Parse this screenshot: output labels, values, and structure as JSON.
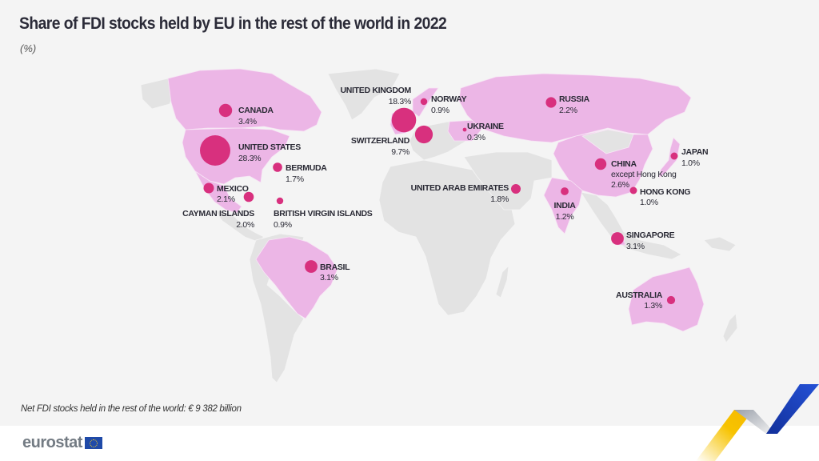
{
  "header": {
    "title": "Share of FDI stocks held by EU in the rest of the world in 2022",
    "unit": "(%)"
  },
  "colors": {
    "background": "#f4f4f4",
    "land": "#e3e3e3",
    "highlighted_land": "#ecb6e6",
    "bubble": "#d8307e",
    "text": "#2a2a35",
    "decor_yellow": "#f7c300",
    "decor_blue": "#1a3fb5"
  },
  "chart_data": {
    "type": "map",
    "title": "Share of FDI stocks held by EU in the rest of the world in 2022",
    "unit": "%",
    "encoding": "proportional bubbles on highlighted countries",
    "series": [
      {
        "name": "UNITED STATES",
        "value": 28.3
      },
      {
        "name": "UNITED KINGDOM",
        "value": 18.3
      },
      {
        "name": "SWITZERLAND",
        "value": 9.7
      },
      {
        "name": "CANADA",
        "value": 3.4
      },
      {
        "name": "BRASIL",
        "value": 3.1
      },
      {
        "name": "SINGAPORE",
        "value": 3.1
      },
      {
        "name": "CHINA",
        "sub": "except Hong Kong",
        "value": 2.6
      },
      {
        "name": "RUSSIA",
        "value": 2.2
      },
      {
        "name": "MEXICO",
        "value": 2.1
      },
      {
        "name": "CAYMAN ISLANDS",
        "value": 2.0
      },
      {
        "name": "UNITED ARAB EMIRATES",
        "value": 1.8
      },
      {
        "name": "BERMUDA",
        "value": 1.7
      },
      {
        "name": "AUSTRALIA",
        "value": 1.3
      },
      {
        "name": "INDIA",
        "value": 1.2
      },
      {
        "name": "JAPAN",
        "value": 1.0
      },
      {
        "name": "HONG KONG",
        "value": 1.0
      },
      {
        "name": "NORWAY",
        "value": 0.9
      },
      {
        "name": "BRITISH VIRGIN ISLANDS",
        "value": 0.9
      },
      {
        "name": "UKRAINE",
        "value": 0.3
      }
    ]
  },
  "labels": {
    "united_states": {
      "name": "UNITED STATES",
      "value": "28.3%"
    },
    "united_kingdom": {
      "name": "UNITED KINGDOM",
      "value": "18.3%"
    },
    "switzerland": {
      "name": "SWITZERLAND",
      "value": "9.7%"
    },
    "canada": {
      "name": "CANADA",
      "value": "3.4%"
    },
    "brasil": {
      "name": "BRASIL",
      "value": "3.1%"
    },
    "singapore": {
      "name": "SINGAPORE",
      "value": "3.1%"
    },
    "china": {
      "name": "CHINA",
      "sub": "except Hong Kong",
      "value": "2.6%"
    },
    "russia": {
      "name": "RUSSIA",
      "value": "2.2%"
    },
    "mexico": {
      "name": "MEXICO",
      "value": "2.1%"
    },
    "cayman": {
      "name": "CAYMAN ISLANDS",
      "value": "2.0%"
    },
    "uae": {
      "name": "UNITED ARAB EMIRATES",
      "value": "1.8%"
    },
    "bermuda": {
      "name": "BERMUDA",
      "value": "1.7%"
    },
    "australia": {
      "name": "AUSTRALIA",
      "value": "1.3%"
    },
    "india": {
      "name": "INDIA",
      "value": "1.2%"
    },
    "japan": {
      "name": "JAPAN",
      "value": "1.0%"
    },
    "hong_kong": {
      "name": "HONG KONG",
      "value": "1.0%"
    },
    "norway": {
      "name": "NORWAY",
      "value": "0.9%"
    },
    "bvi": {
      "name": "BRITISH VIRGIN ISLANDS",
      "value": "0.9%"
    },
    "ukraine": {
      "name": "UKRAINE",
      "value": "0.3%"
    }
  },
  "footer": {
    "note": "Net FDI stocks held in the rest of the world: € 9 382 billion",
    "logo_text": "eurostat"
  }
}
